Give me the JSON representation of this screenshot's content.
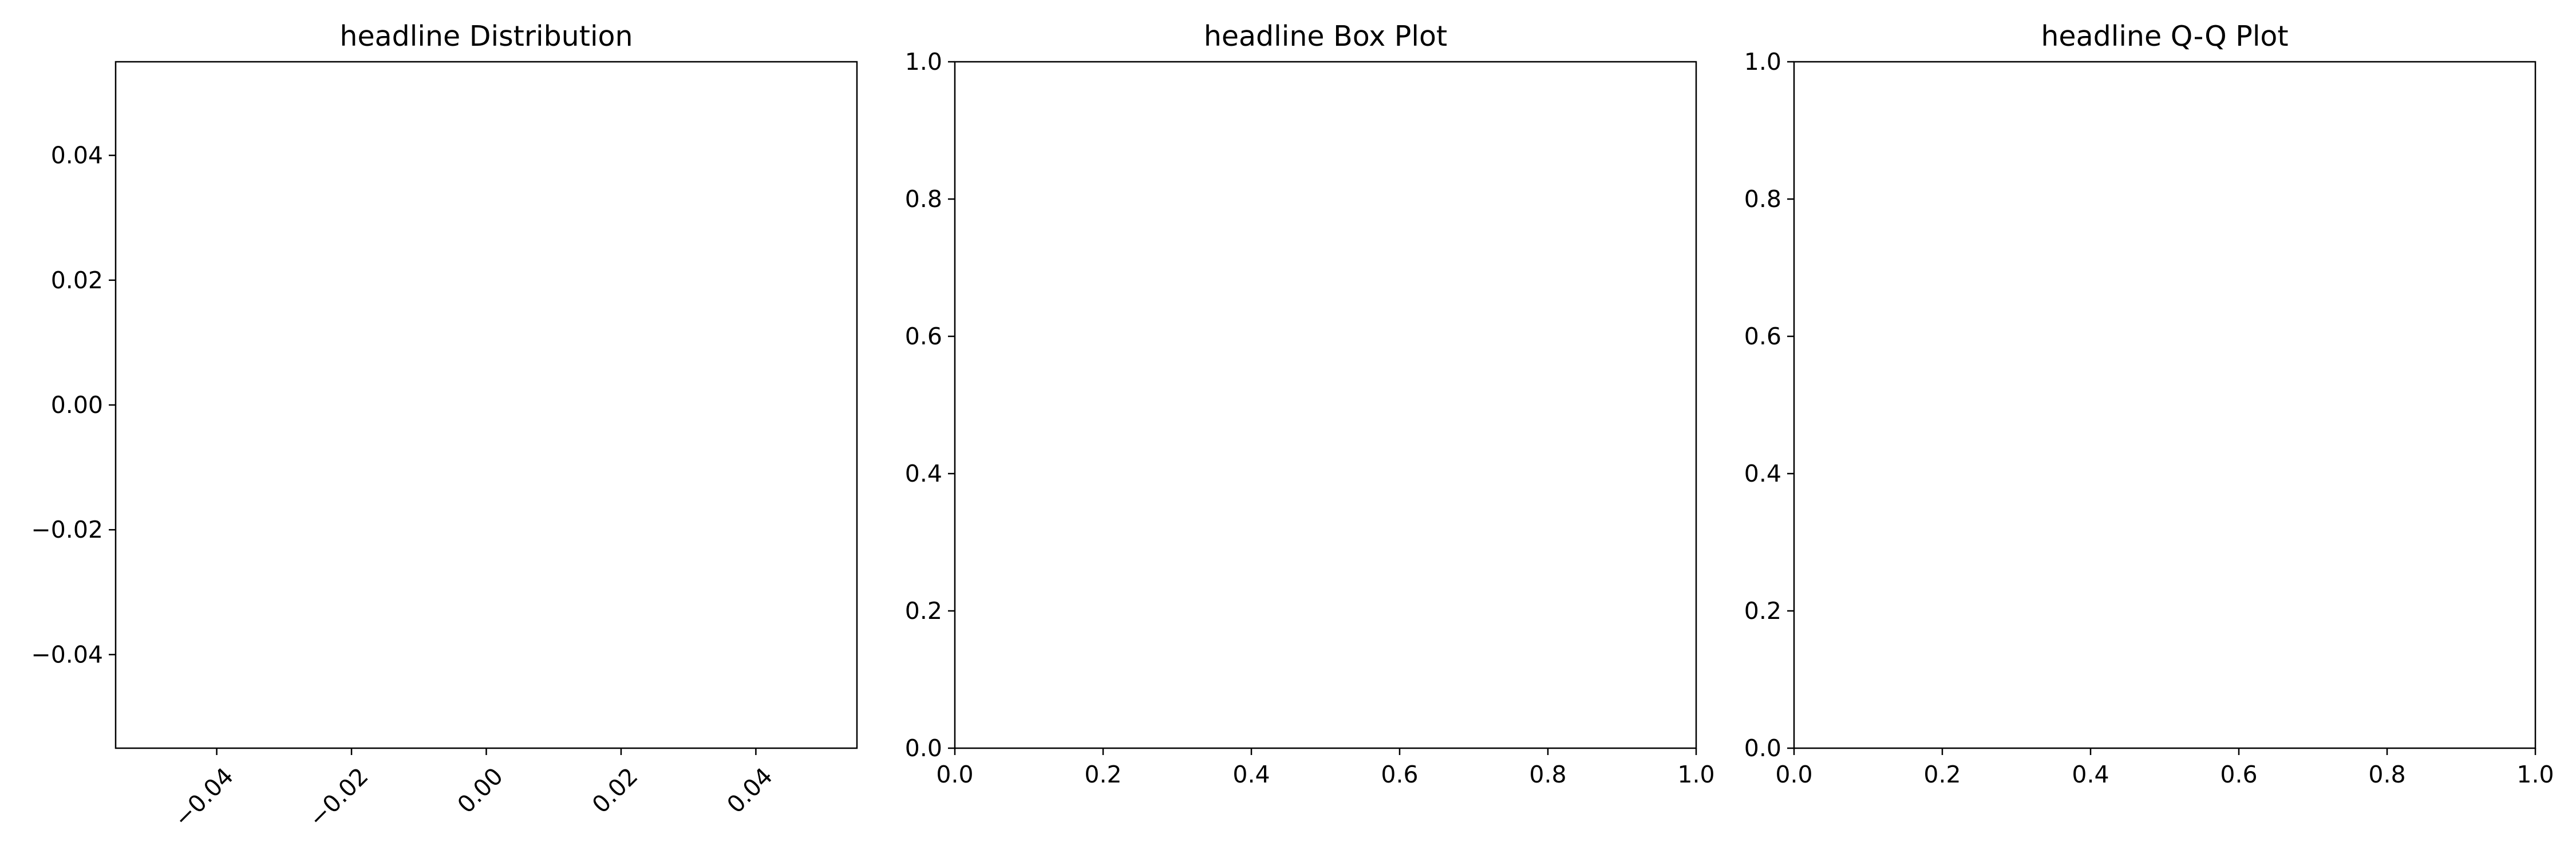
{
  "chart_data": [
    {
      "type": "bar",
      "title": "headline Distribution",
      "xlabel": "",
      "ylabel": "",
      "xlim": [
        -0.055,
        0.055
      ],
      "ylim": [
        -0.055,
        0.055
      ],
      "x_ticks": [
        -0.04,
        -0.02,
        0.0,
        0.02,
        0.04
      ],
      "y_ticks": [
        -0.04,
        -0.02,
        0.0,
        0.02,
        0.04
      ],
      "x_tick_labels": [
        "−0.04",
        "−0.02",
        "0.00",
        "0.02",
        "0.04"
      ],
      "y_tick_labels": [
        "−0.04",
        "−0.02",
        "0.00",
        "0.02",
        "0.04"
      ],
      "x_tick_rotation": 45,
      "grid": false,
      "series": []
    },
    {
      "type": "box",
      "title": "headline Box Plot",
      "xlabel": "",
      "ylabel": "",
      "xlim": [
        0,
        1
      ],
      "ylim": [
        0,
        1
      ],
      "x_ticks": [
        0,
        0.2,
        0.4,
        0.6,
        0.8,
        1.0
      ],
      "y_ticks": [
        0,
        0.2,
        0.4,
        0.6,
        0.8,
        1.0
      ],
      "x_tick_labels": [
        "0.0",
        "0.2",
        "0.4",
        "0.6",
        "0.8",
        "1.0"
      ],
      "y_tick_labels": [
        "0.0",
        "0.2",
        "0.4",
        "0.6",
        "0.8",
        "1.0"
      ],
      "x_tick_rotation": 0,
      "grid": false,
      "series": []
    },
    {
      "type": "scatter",
      "title": "headline Q-Q Plot",
      "xlabel": "",
      "ylabel": "",
      "xlim": [
        0,
        1
      ],
      "ylim": [
        0,
        1
      ],
      "x_ticks": [
        0,
        0.2,
        0.4,
        0.6,
        0.8,
        1.0
      ],
      "y_ticks": [
        0,
        0.2,
        0.4,
        0.6,
        0.8,
        1.0
      ],
      "x_tick_labels": [
        "0.0",
        "0.2",
        "0.4",
        "0.6",
        "0.8",
        "1.0"
      ],
      "y_tick_labels": [
        "0.0",
        "0.2",
        "0.4",
        "0.6",
        "0.8",
        "1.0"
      ],
      "x_tick_rotation": 0,
      "grid": false,
      "series": []
    }
  ]
}
